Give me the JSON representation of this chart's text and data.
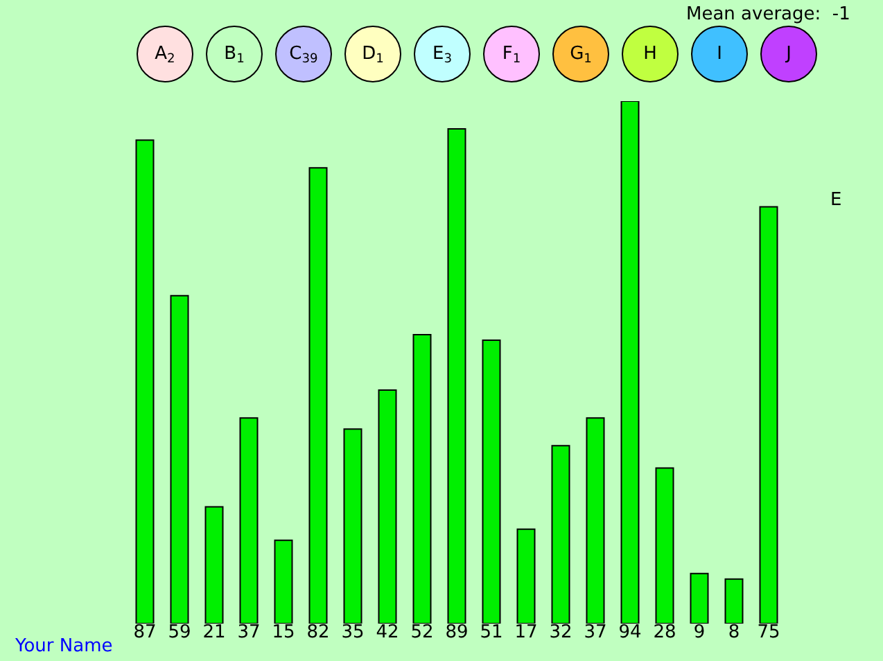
{
  "chart_data": [
    {
      "type": "other",
      "categories": [
        "A",
        "B",
        "C",
        "D",
        "E",
        "F",
        "G",
        "H",
        "I",
        "J"
      ],
      "values": [
        2,
        1,
        39,
        1,
        3,
        1,
        1,
        null,
        null,
        null
      ],
      "colors": [
        "#ffe0e0",
        "#c0ffc0",
        "#c0c0ff",
        "#ffffc0",
        "#c0ffff",
        "#ffc0ff",
        "#ffc040",
        "#c0ff40",
        "#40c0ff",
        "#c040ff"
      ],
      "data_labels": true,
      "annotations": [
        "Mean average:  -1"
      ]
    },
    {
      "type": "bar",
      "categories": [
        null,
        null,
        null,
        null,
        null,
        null,
        null,
        null,
        null,
        null,
        null,
        null,
        null,
        null,
        null,
        null,
        null,
        null,
        null
      ],
      "values": [
        87,
        59,
        21,
        37,
        15,
        82,
        35,
        42,
        52,
        89,
        51,
        17,
        32,
        37,
        94,
        28,
        9,
        8,
        75
      ],
      "color": "#00f000",
      "data_labels": true,
      "annotations": [
        "E",
        "Your Name"
      ]
    }
  ]
}
